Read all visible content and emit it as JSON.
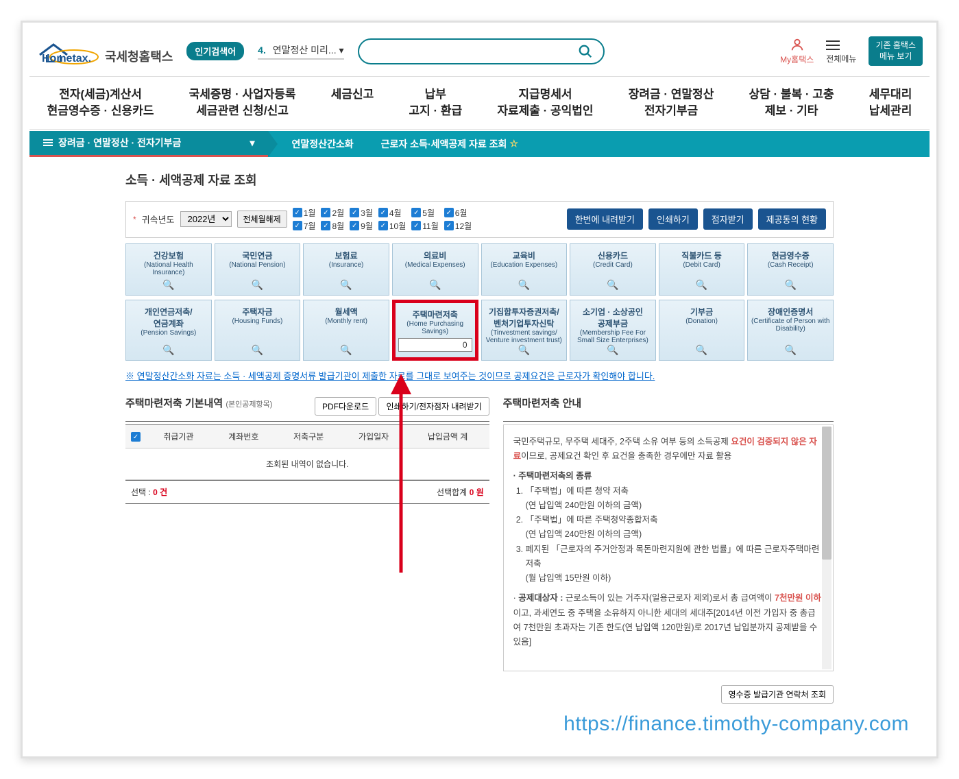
{
  "header": {
    "logo_suffix": "국세청홈택스",
    "trending_label": "인기검색어",
    "trending_num": "4.",
    "trending_text": "연말정산 미리...",
    "search_placeholder": "",
    "my_label": "My홈택스",
    "all_menu_label": "전체메뉴",
    "classic_btn_l1": "기존 홈택스",
    "classic_btn_l2": "메뉴 보기"
  },
  "nav": [
    {
      "l1": "전자(세금)계산서",
      "l2": "현금영수증 · 신용카드"
    },
    {
      "l1": "국세증명 · 사업자등록",
      "l2": "세금관련 신청/신고"
    },
    {
      "l1": "세금신고",
      "l2": ""
    },
    {
      "l1": "납부",
      "l2": "고지 · 환급"
    },
    {
      "l1": "지급명세서",
      "l2": "자료제출 · 공익법인"
    },
    {
      "l1": "장려금 · 연말정산",
      "l2": "전자기부금"
    },
    {
      "l1": "상담 · 불복 · 고충",
      "l2": "제보 · 기타"
    },
    {
      "l1": "세무대리",
      "l2": "납세관리"
    }
  ],
  "crumb": {
    "seg1": "장려금 · 연말정산 · 전자기부금",
    "seg2": "연말정산간소화",
    "seg3": "근로자 소득·세액공제 자료 조회"
  },
  "page_title": "소득 · 세액공제 자료 조회",
  "filter": {
    "year_label": "귀속년도",
    "year_value": "2022년",
    "clear_btn": "전체월해제",
    "months": [
      "1월",
      "2월",
      "3월",
      "4월",
      "5월",
      "6월",
      "7월",
      "8월",
      "9월",
      "10월",
      "11월",
      "12월"
    ],
    "btn_download": "한번에 내려받기",
    "btn_print": "인쇄하기",
    "btn_dot": "점자받기",
    "btn_status": "제공동의 현황"
  },
  "cards_row1": [
    {
      "k": "건강보험",
      "e": "(National Health Insurance)"
    },
    {
      "k": "국민연금",
      "e": "(National Pension)"
    },
    {
      "k": "보험료",
      "e": "(Insurance)"
    },
    {
      "k": "의료비",
      "e": "(Medical Expenses)"
    },
    {
      "k": "교육비",
      "e": "(Education Expenses)"
    },
    {
      "k": "신용카드",
      "e": "(Credit Card)"
    },
    {
      "k": "직불카드 등",
      "e": "(Debit Card)"
    },
    {
      "k": "현금영수증",
      "e": "(Cash Receipt)"
    }
  ],
  "cards_row2": [
    {
      "k": "개인연금저축/",
      "k2": "연금계좌",
      "e": "(Pension Savings)"
    },
    {
      "k": "주택자금",
      "e": "(Housing Funds)"
    },
    {
      "k": "월세액",
      "e": "(Monthly rent)"
    },
    {
      "k": "주택마련저축",
      "e": "(Home Purchasing Savings)",
      "val": "0",
      "hl": true
    },
    {
      "k": "기집합투자증권저축/",
      "k2": "벤처기업투자신탁",
      "e": "(Tinvestment savings/ Venture investment trust)"
    },
    {
      "k": "소기업 · 소상공인",
      "k2": "공제부금",
      "e": "(Membership Fee For Small Size Enterprises)"
    },
    {
      "k": "기부금",
      "e": "(Donation)"
    },
    {
      "k": "장애인증명서",
      "e": "(Certificate of Person with Disability)"
    }
  ],
  "notice": "※ 연말정산간소화 자료는 소득 · 세액공제 증명서류 발급기관이 제출한 자료를 그대로 보여주는 것이므로 공제요건은 근로자가 확인해야 합니다.",
  "detail": {
    "title": "주택마련저축 기본내역",
    "sub": "(본인공제항목)",
    "btn_pdf": "PDF다운로드",
    "btn_print": "인쇄하기/전자점자 내려받기",
    "cols": [
      "",
      "취급기관",
      "계좌번호",
      "저축구분",
      "가입일자",
      "납입금액 계"
    ],
    "empty_msg": "조회된 내역이 없습니다.",
    "footer_left_label": "선택 :",
    "footer_left_val": "0 건",
    "footer_right_label": "선택합계",
    "footer_right_val": "0 원",
    "info_title": "주택마련저축 안내",
    "info_p1_a": "국민주택규모, 무주택 세대주, 2주택 소유 여부 등의 소득공제 ",
    "info_p1_hl": "요건이 검증되지 않은 자료",
    "info_p1_b": "이므로, 공제요건 확인 후 요건을 충족한 경우에만 자료 활용",
    "info_h2": "주택마련저축의 종류",
    "info_li1": "「주택법」에 따른 청약 저축",
    "info_li1_sub": "(연 납입액 240만원 이하의 금액)",
    "info_li2": "「주택법」에 따른 주택청약종합저축",
    "info_li2_sub": "(연 납입액 240만원 이하의 금액)",
    "info_li3": "폐지된 「근로자의 주거안정과 목돈마련지원에 관한 법률」에 따른 근로자주택마련저축",
    "info_li3_sub": "(월 납입액 15만원 이하)",
    "info_p2_label": "공제대상자 : ",
    "info_p2_a": "근로소득이 있는 거주자(일용근로자 제외)로서 총 급여액이 ",
    "info_p2_hl": "7천만원 이하",
    "info_p2_b": "이고, 과세연도 중 주택을 소유하지 아니한 세대의 세대주[2014년 이전 가입자 중 총급여 7천만원 초과자는 기존 한도(연 납입액 120만원)로 2017년 납입분까지 공제받을 수 있음]",
    "footer_btn": "영수증 발급기관 연락처 조회"
  },
  "watermark": "https://finance.timothy-company.com",
  "colors": {
    "teal": "#0a9db0",
    "teal_dark": "#0a8c9d",
    "red": "#d9001b",
    "red_underline": "#d9534f",
    "blue_btn": "#1a5490",
    "card_border": "#a8c5d8",
    "link_blue": "#0066cc"
  }
}
